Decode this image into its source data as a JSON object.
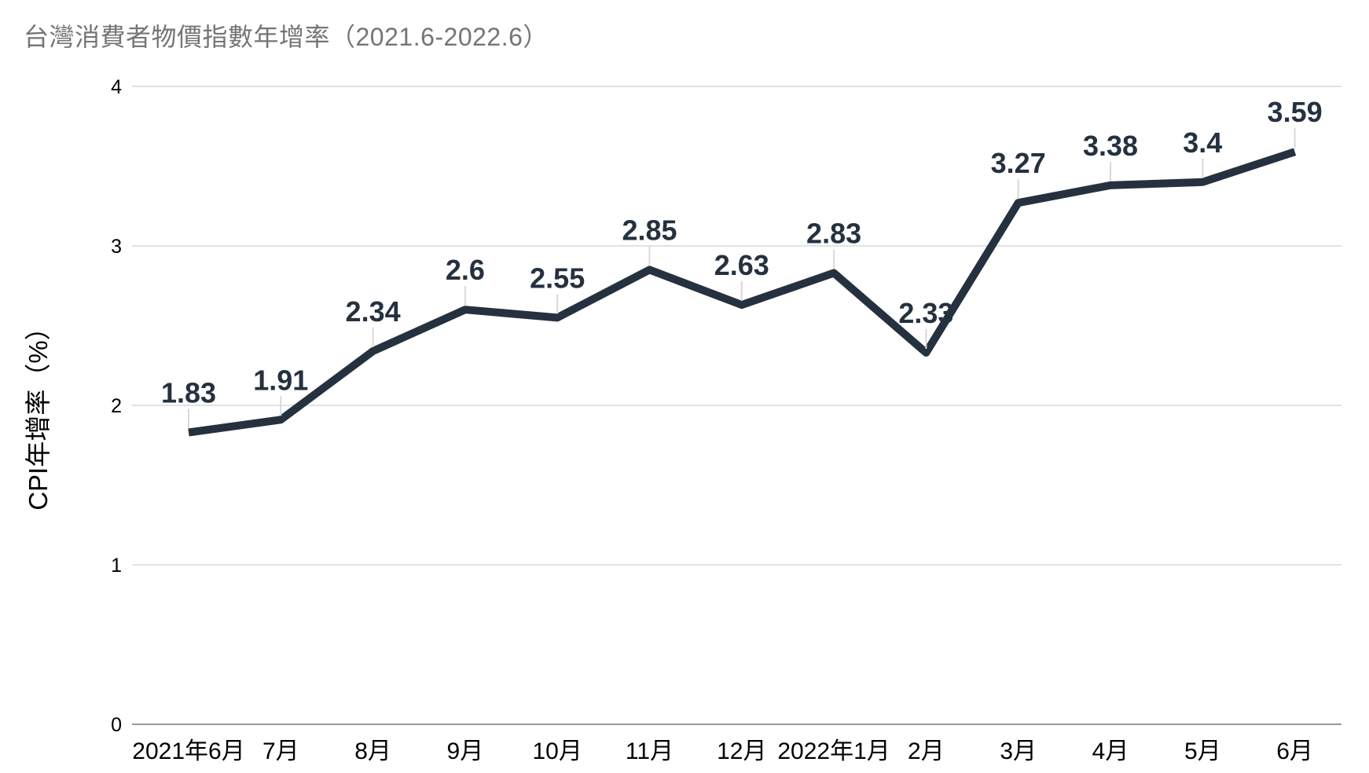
{
  "title": "台灣消費者物價指數年增率（2021.6-2022.6）",
  "y_axis_title": "CPI年增率（%）",
  "chart_data": {
    "type": "line",
    "title": "台灣消費者物價指數年增率（2021.6-2022.6）",
    "xlabel": "",
    "ylabel": "CPI年增率（%）",
    "categories": [
      "2021年6月",
      "7月",
      "8月",
      "9月",
      "10月",
      "11月",
      "12月",
      "2022年1月",
      "2月",
      "3月",
      "4月",
      "5月",
      "6月"
    ],
    "series": [
      {
        "name": "CPI年增率",
        "values": [
          1.83,
          1.91,
          2.34,
          2.6,
          2.55,
          2.85,
          2.63,
          2.83,
          2.33,
          3.27,
          3.38,
          3.4,
          3.59
        ],
        "data_labels": [
          "1.83",
          "1.91",
          "2.34",
          "2.6",
          "2.55",
          "2.85",
          "2.63",
          "2.83",
          "2.33",
          "3.27",
          "3.38",
          "3.4",
          "3.59"
        ]
      }
    ],
    "ylim": [
      0,
      4
    ],
    "yticks": [
      0,
      1,
      2,
      3,
      4
    ],
    "grid": "horizontal-only",
    "legend_position": "none",
    "colors": {
      "line": "#25313f",
      "data_label": "#25313f",
      "title": "#757575",
      "tick_label": "#000000",
      "gridline": "#e2e2e2",
      "axis_baseline": "#999999",
      "leader_line": "#d8d8d8",
      "background": "#ffffff"
    }
  }
}
